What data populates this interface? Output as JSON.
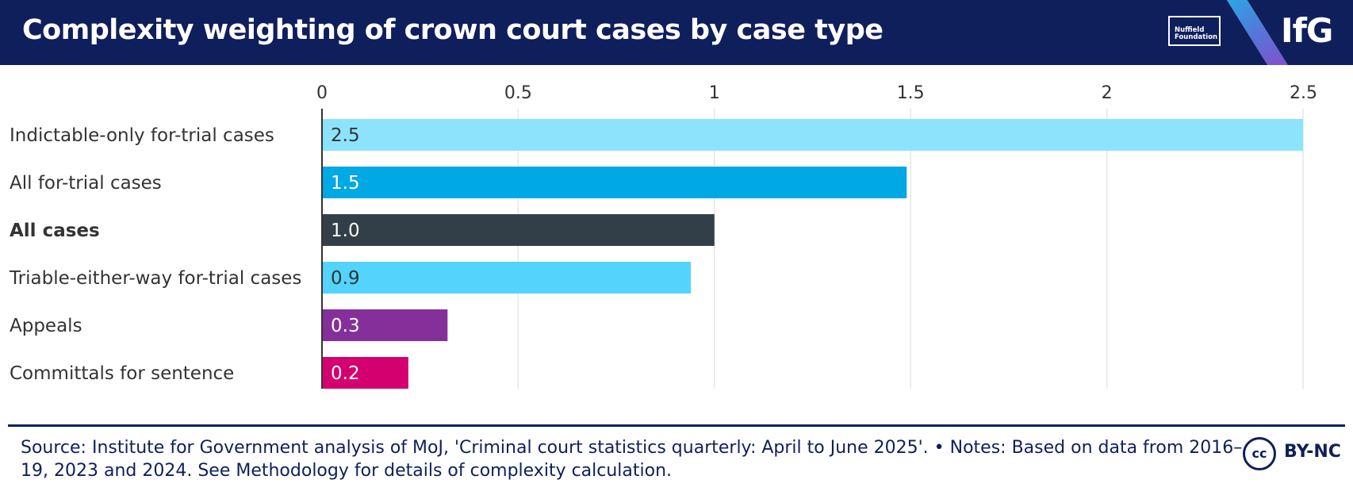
{
  "header": {
    "title": "Complexity weighting of crown court cases by case type",
    "logo_nuffield_line1": "Nuffield",
    "logo_nuffield_line2": "Foundation",
    "logo_ifg": "IfG"
  },
  "chart_data": {
    "type": "bar",
    "orientation": "horizontal",
    "title": "Complexity weighting of crown court cases by case type",
    "categories": [
      "Indictable-only for-trial cases",
      "All for-trial cases",
      "All cases",
      "Triable-either-way for-trial cases",
      "Appeals",
      "Committals for sentence"
    ],
    "values": [
      2.5,
      1.49,
      1.0,
      0.94,
      0.32,
      0.22
    ],
    "value_labels": [
      "2.5",
      "1.5",
      "1.0",
      "0.9",
      "0.3",
      "0.2"
    ],
    "bold_categories": [
      "All cases"
    ],
    "bar_colors": [
      "#8de3fc",
      "#00a8e4",
      "#333f48",
      "#52d4fc",
      "#85309a",
      "#d4006f"
    ],
    "label_colors": [
      "#333333",
      "#ffffff",
      "#ffffff",
      "#333333",
      "#ffffff",
      "#ffffff"
    ],
    "xlim": [
      0,
      2.5
    ],
    "xticks": [
      0,
      0.5,
      1,
      1.5,
      2,
      2.5
    ],
    "xtick_labels": [
      "0",
      "0.5",
      "1",
      "1.5",
      "2",
      "2.5"
    ],
    "axis_position": "top",
    "grid": true,
    "xlabel": "",
    "ylabel": ""
  },
  "footer": {
    "source": "Source: Institute for Government analysis of MoJ, 'Criminal court statistics quarterly: April to June 2025'. • Notes: Based on data from 2016–19, 2023 and 2024. See Methodology for details of complexity calculation.",
    "license_icon": "cc",
    "license_text": "BY-NC"
  }
}
